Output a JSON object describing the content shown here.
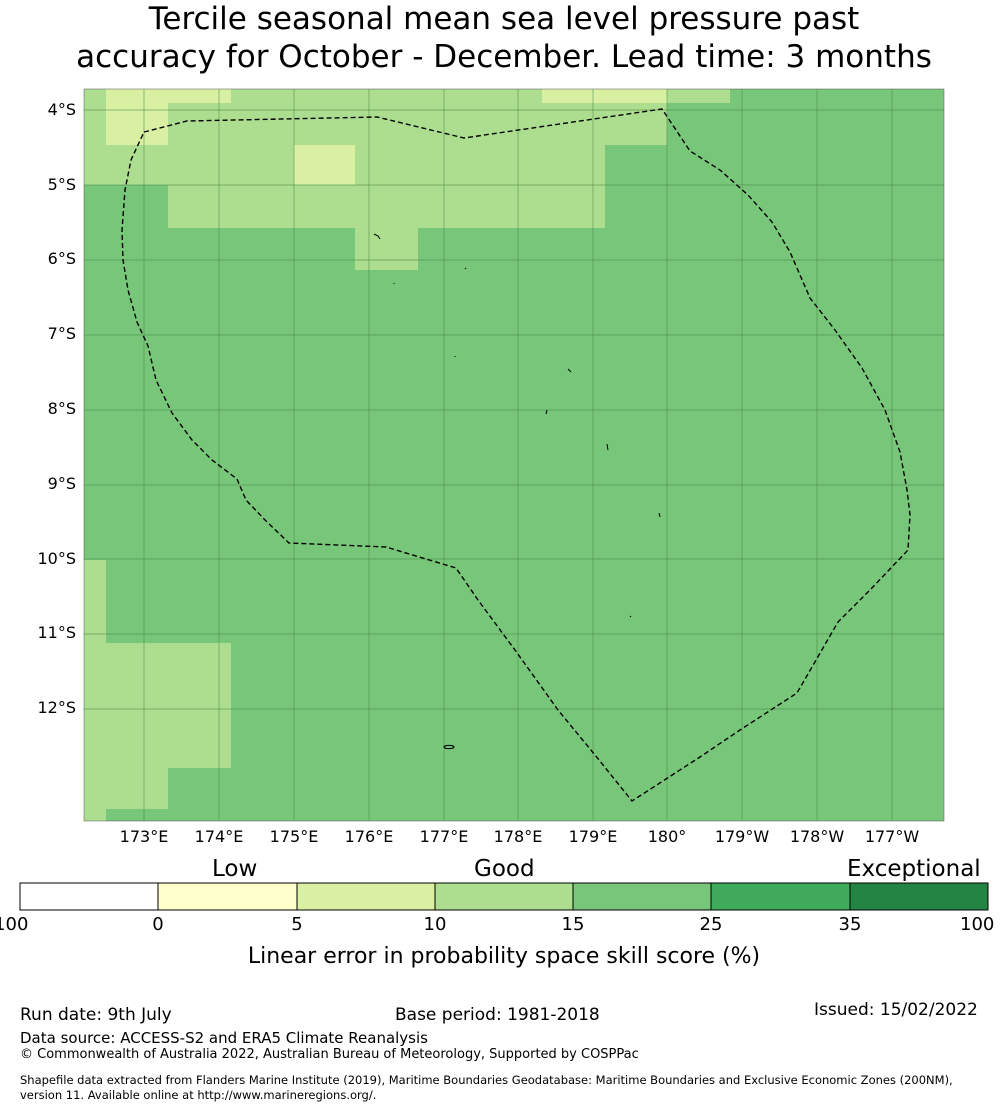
{
  "title": {
    "line1": "Tercile seasonal mean sea level pressure past",
    "line2": "accuracy for October - December. Lead time: 3 months"
  },
  "map": {
    "lat_labels": [
      "4°S",
      "5°S",
      "6°S",
      "7°S",
      "8°S",
      "9°S",
      "10°S",
      "11°S",
      "12°S"
    ],
    "lon_labels": [
      "173°E",
      "174°E",
      "175°E",
      "176°E",
      "177°E",
      "178°E",
      "179°E",
      "180°",
      "179°W",
      "178°W",
      "177°W"
    ],
    "eez_boundary": "dashed",
    "colors": {
      "cat_5_10": "#d9f0a3",
      "cat_10_15": "#addd8e",
      "cat_15_25": "#78c679",
      "grid": "#4a8a4a",
      "boundary": "#000000"
    }
  },
  "colorbar": {
    "categories": [
      "Low",
      "Good",
      "Exceptional"
    ],
    "ticks": [
      "-100",
      "0",
      "5",
      "10",
      "15",
      "25",
      "35",
      "100"
    ],
    "colors": [
      "#ffffff",
      "#ffffcc",
      "#d9f0a3",
      "#addd8e",
      "#78c679",
      "#41ab5d",
      "#238443"
    ],
    "label": "Linear error in probability space skill score (%)"
  },
  "footer": {
    "run_date": "Run date: 9th July",
    "base_period": "Base period: 1981-2018",
    "issued": "Issued: 15/02/2022",
    "data_source": "Data source: ACCESS-S2 and ERA5 Climate Reanalysis",
    "copyright": "© Commonwealth of Australia 2022, Australian Bureau of Meteorology, Supported by COSPPac",
    "shapefile_line1": "Shapefile data extracted from Flanders Marine Institute (2019), Maritime Boundaries Geodatabase: Maritime Boundaries and Exclusive Economic Zones (200NM),",
    "shapefile_line2": "version 11. Available online at http://www.marineregions.org/."
  }
}
